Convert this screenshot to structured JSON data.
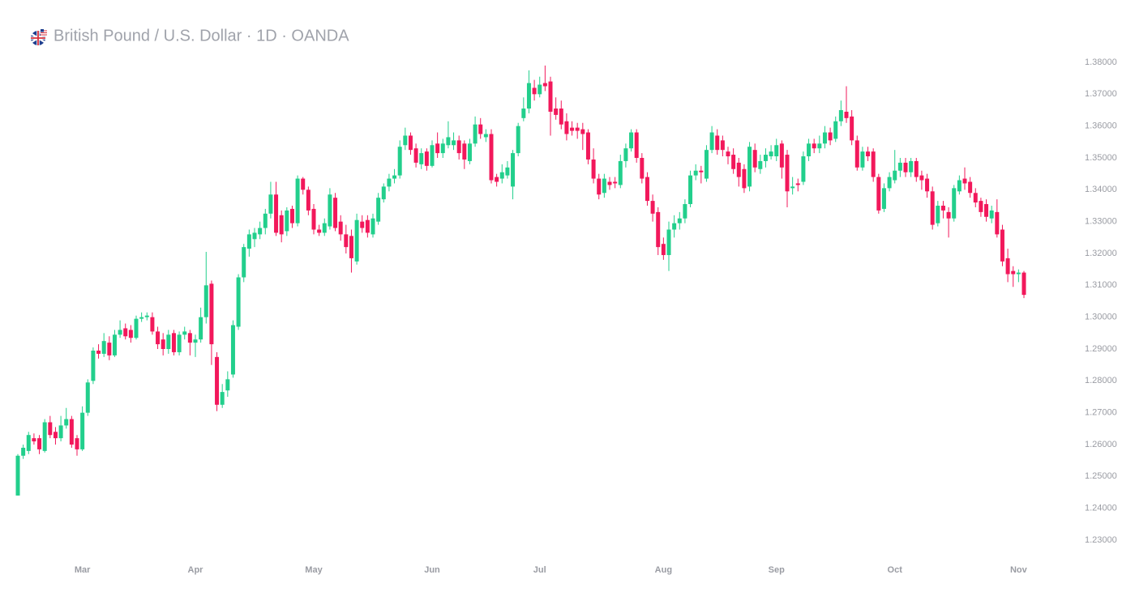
{
  "chart_data": {
    "type": "candlestick",
    "title": "British Pound / U.S. Dollar · 1D · OANDA",
    "up_color": "#22cf8c",
    "down_color": "#f2185b",
    "ylim": [
      1.23,
      1.38
    ],
    "yticks": [
      {
        "value": 1.23,
        "label": "1.23000"
      },
      {
        "value": 1.24,
        "label": "1.24000"
      },
      {
        "value": 1.25,
        "label": "1.25000"
      },
      {
        "value": 1.26,
        "label": "1.26000"
      },
      {
        "value": 1.27,
        "label": "1.27000"
      },
      {
        "value": 1.28,
        "label": "1.28000"
      },
      {
        "value": 1.29,
        "label": "1.29000"
      },
      {
        "value": 1.3,
        "label": "1.30000"
      },
      {
        "value": 1.31,
        "label": "1.31000"
      },
      {
        "value": 1.32,
        "label": "1.32000"
      },
      {
        "value": 1.33,
        "label": "1.33000"
      },
      {
        "value": 1.34,
        "label": "1.34000"
      },
      {
        "value": 1.35,
        "label": "1.35000"
      },
      {
        "value": 1.36,
        "label": "1.36000"
      },
      {
        "value": 1.37,
        "label": "1.37000"
      },
      {
        "value": 1.38,
        "label": "1.38000"
      }
    ],
    "categories": [
      null,
      null,
      null,
      null,
      null,
      null,
      null,
      null,
      null,
      null,
      null,
      null,
      "Mar",
      null,
      null,
      null,
      null,
      null,
      null,
      null,
      null,
      null,
      null,
      null,
      null,
      null,
      null,
      null,
      null,
      null,
      null,
      null,
      null,
      "Apr",
      null,
      null,
      null,
      null,
      null,
      null,
      null,
      null,
      null,
      null,
      null,
      null,
      null,
      null,
      null,
      null,
      null,
      null,
      null,
      null,
      null,
      "May",
      null,
      null,
      null,
      null,
      null,
      null,
      null,
      null,
      null,
      null,
      null,
      null,
      null,
      null,
      null,
      null,
      null,
      null,
      null,
      null,
      null,
      "Jun",
      null,
      null,
      null,
      null,
      null,
      null,
      null,
      null,
      null,
      null,
      null,
      null,
      null,
      null,
      null,
      null,
      null,
      null,
      null,
      "Jul",
      null,
      null,
      null,
      null,
      null,
      null,
      null,
      null,
      null,
      null,
      null,
      null,
      null,
      null,
      null,
      null,
      null,
      null,
      null,
      null,
      null,
      null,
      "Aug",
      null,
      null,
      null,
      null,
      null,
      null,
      null,
      null,
      null,
      null,
      null,
      null,
      null,
      null,
      null,
      null,
      null,
      null,
      null,
      null,
      "Sep",
      null,
      null,
      null,
      null,
      null,
      null,
      null,
      null,
      null,
      null,
      null,
      null,
      null,
      null,
      null,
      null,
      null,
      null,
      null,
      null,
      null,
      "Oct",
      null,
      null,
      null,
      null,
      null,
      null,
      null,
      null,
      null,
      null,
      null,
      null,
      null,
      null,
      null,
      null,
      null,
      null,
      null,
      null,
      null,
      null,
      "Nov",
      null
    ],
    "ohlc": [
      [
        1.244,
        1.257,
        1.244,
        1.2565
      ],
      [
        1.2565,
        1.26,
        1.2555,
        1.259
      ],
      [
        1.258,
        1.264,
        1.257,
        1.263
      ],
      [
        1.262,
        1.2635,
        1.26,
        1.261
      ],
      [
        1.262,
        1.263,
        1.257,
        1.2585
      ],
      [
        1.258,
        1.268,
        1.2575,
        1.267
      ],
      [
        1.267,
        1.269,
        1.262,
        1.263
      ],
      [
        1.264,
        1.2655,
        1.26,
        1.262
      ],
      [
        1.262,
        1.269,
        1.261,
        1.266
      ],
      [
        1.266,
        1.2715,
        1.265,
        1.268
      ],
      [
        1.268,
        1.269,
        1.259,
        1.26
      ],
      [
        1.262,
        1.263,
        1.2565,
        1.2585
      ],
      [
        1.2585,
        1.272,
        1.258,
        1.27
      ],
      [
        1.27,
        1.2805,
        1.269,
        1.2795
      ],
      [
        1.28,
        1.2905,
        1.279,
        1.2895
      ],
      [
        1.2895,
        1.2915,
        1.287,
        1.2885
      ],
      [
        1.2885,
        1.295,
        1.2875,
        1.2925
      ],
      [
        1.292,
        1.294,
        1.2865,
        1.288
      ],
      [
        1.288,
        1.296,
        1.2875,
        1.2945
      ],
      [
        1.2945,
        1.299,
        1.2935,
        1.296
      ],
      [
        1.2965,
        1.298,
        1.293,
        1.294
      ],
      [
        1.296,
        1.2975,
        1.292,
        1.2935
      ],
      [
        1.2935,
        1.3005,
        1.293,
        1.2995
      ],
      [
        1.2995,
        1.3015,
        1.2985,
        1.3
      ],
      [
        1.3,
        1.3015,
        1.299,
        1.3005
      ],
      [
        1.3,
        1.3015,
        1.2945,
        1.2955
      ],
      [
        1.2955,
        1.297,
        1.29,
        1.2915
      ],
      [
        1.293,
        1.295,
        1.288,
        1.29
      ],
      [
        1.29,
        1.296,
        1.2885,
        1.2945
      ],
      [
        1.295,
        1.296,
        1.288,
        1.289
      ],
      [
        1.289,
        1.2955,
        1.288,
        1.2945
      ],
      [
        1.2945,
        1.297,
        1.293,
        1.2955
      ],
      [
        1.295,
        1.296,
        1.288,
        1.292
      ],
      [
        1.292,
        1.2945,
        1.2875,
        1.293
      ],
      [
        1.293,
        1.303,
        1.292,
        1.3
      ],
      [
        1.3,
        1.3205,
        1.298,
        1.31
      ],
      [
        1.3105,
        1.3115,
        1.285,
        1.2915
      ],
      [
        1.2875,
        1.289,
        1.2705,
        1.2725
      ],
      [
        1.2725,
        1.279,
        1.2715,
        1.2765
      ],
      [
        1.277,
        1.283,
        1.275,
        1.2805
      ],
      [
        1.282,
        1.299,
        1.281,
        1.2975
      ],
      [
        1.297,
        1.3135,
        1.296,
        1.3125
      ],
      [
        1.3125,
        1.323,
        1.311,
        1.322
      ],
      [
        1.3215,
        1.3275,
        1.319,
        1.326
      ],
      [
        1.3245,
        1.328,
        1.322,
        1.3265
      ],
      [
        1.326,
        1.33,
        1.3245,
        1.328
      ],
      [
        1.328,
        1.334,
        1.326,
        1.3325
      ],
      [
        1.3325,
        1.3425,
        1.331,
        1.3385
      ],
      [
        1.3385,
        1.3425,
        1.3255,
        1.3265
      ],
      [
        1.332,
        1.3335,
        1.3235,
        1.326
      ],
      [
        1.327,
        1.3345,
        1.3255,
        1.3335
      ],
      [
        1.334,
        1.335,
        1.328,
        1.3295
      ],
      [
        1.3295,
        1.3445,
        1.3285,
        1.3435
      ],
      [
        1.3435,
        1.344,
        1.3385,
        1.34
      ],
      [
        1.34,
        1.341,
        1.332,
        1.3335
      ],
      [
        1.334,
        1.3355,
        1.326,
        1.3275
      ],
      [
        1.3275,
        1.329,
        1.3255,
        1.3265
      ],
      [
        1.3265,
        1.331,
        1.3255,
        1.3295
      ],
      [
        1.3285,
        1.3405,
        1.3275,
        1.3385
      ],
      [
        1.3375,
        1.339,
        1.327,
        1.328
      ],
      [
        1.33,
        1.332,
        1.324,
        1.326
      ],
      [
        1.326,
        1.329,
        1.32,
        1.322
      ],
      [
        1.3255,
        1.3275,
        1.314,
        1.3185
      ],
      [
        1.3175,
        1.3325,
        1.3165,
        1.3305
      ],
      [
        1.33,
        1.332,
        1.3265,
        1.328
      ],
      [
        1.3305,
        1.332,
        1.325,
        1.3265
      ],
      [
        1.326,
        1.3325,
        1.325,
        1.331
      ],
      [
        1.33,
        1.339,
        1.329,
        1.3375
      ],
      [
        1.337,
        1.342,
        1.336,
        1.341
      ],
      [
        1.341,
        1.345,
        1.3395,
        1.3435
      ],
      [
        1.3435,
        1.3465,
        1.342,
        1.3445
      ],
      [
        1.3445,
        1.3555,
        1.3435,
        1.3535
      ],
      [
        1.354,
        1.3595,
        1.3525,
        1.357
      ],
      [
        1.357,
        1.358,
        1.351,
        1.3525
      ],
      [
        1.353,
        1.3545,
        1.347,
        1.3485
      ],
      [
        1.348,
        1.353,
        1.3465,
        1.3515
      ],
      [
        1.352,
        1.353,
        1.346,
        1.3475
      ],
      [
        1.3475,
        1.3555,
        1.347,
        1.354
      ],
      [
        1.3545,
        1.358,
        1.35,
        1.3515
      ],
      [
        1.3515,
        1.356,
        1.35,
        1.3545
      ],
      [
        1.354,
        1.3615,
        1.353,
        1.3565
      ],
      [
        1.354,
        1.358,
        1.3525,
        1.3555
      ],
      [
        1.3555,
        1.357,
        1.3495,
        1.3515
      ],
      [
        1.3545,
        1.3555,
        1.3465,
        1.3495
      ],
      [
        1.349,
        1.356,
        1.348,
        1.3545
      ],
      [
        1.3545,
        1.363,
        1.3535,
        1.3605
      ],
      [
        1.3605,
        1.3625,
        1.356,
        1.3575
      ],
      [
        1.3565,
        1.359,
        1.355,
        1.3575
      ],
      [
        1.3575,
        1.359,
        1.342,
        1.343
      ],
      [
        1.344,
        1.345,
        1.341,
        1.3425
      ],
      [
        1.3435,
        1.348,
        1.342,
        1.3455
      ],
      [
        1.3445,
        1.349,
        1.3435,
        1.347
      ],
      [
        1.341,
        1.3525,
        1.337,
        1.3515
      ],
      [
        1.3515,
        1.361,
        1.3505,
        1.36
      ],
      [
        1.3625,
        1.369,
        1.3615,
        1.3655
      ],
      [
        1.3655,
        1.3775,
        1.364,
        1.3735
      ],
      [
        1.372,
        1.3745,
        1.368,
        1.37
      ],
      [
        1.37,
        1.3755,
        1.369,
        1.373
      ],
      [
        1.3735,
        1.379,
        1.371,
        1.3725
      ],
      [
        1.374,
        1.3755,
        1.357,
        1.3645
      ],
      [
        1.3655,
        1.369,
        1.362,
        1.3635
      ],
      [
        1.3655,
        1.368,
        1.359,
        1.3605
      ],
      [
        1.3615,
        1.364,
        1.3555,
        1.3575
      ],
      [
        1.3595,
        1.3615,
        1.357,
        1.3585
      ],
      [
        1.3595,
        1.361,
        1.356,
        1.3585
      ],
      [
        1.359,
        1.361,
        1.3525,
        1.3575
      ],
      [
        1.358,
        1.359,
        1.348,
        1.3495
      ],
      [
        1.3495,
        1.353,
        1.342,
        1.3435
      ],
      [
        1.3435,
        1.345,
        1.337,
        1.3385
      ],
      [
        1.339,
        1.345,
        1.3375,
        1.3435
      ],
      [
        1.3425,
        1.344,
        1.34,
        1.3415
      ],
      [
        1.3425,
        1.344,
        1.3405,
        1.342
      ],
      [
        1.3415,
        1.351,
        1.3405,
        1.349
      ],
      [
        1.349,
        1.3545,
        1.347,
        1.353
      ],
      [
        1.353,
        1.359,
        1.352,
        1.358
      ],
      [
        1.358,
        1.359,
        1.3485,
        1.35
      ],
      [
        1.35,
        1.3515,
        1.342,
        1.3435
      ],
      [
        1.344,
        1.3455,
        1.335,
        1.3365
      ],
      [
        1.3365,
        1.3385,
        1.33,
        1.3325
      ],
      [
        1.333,
        1.3345,
        1.3195,
        1.322
      ],
      [
        1.323,
        1.325,
        1.318,
        1.3195
      ],
      [
        1.3195,
        1.33,
        1.3145,
        1.3275
      ],
      [
        1.3275,
        1.332,
        1.325,
        1.3295
      ],
      [
        1.3295,
        1.333,
        1.3275,
        1.331
      ],
      [
        1.331,
        1.337,
        1.3295,
        1.3355
      ],
      [
        1.3355,
        1.346,
        1.3345,
        1.3445
      ],
      [
        1.3445,
        1.348,
        1.343,
        1.346
      ],
      [
        1.346,
        1.3475,
        1.342,
        1.3455
      ],
      [
        1.3435,
        1.354,
        1.3425,
        1.3525
      ],
      [
        1.3525,
        1.36,
        1.3515,
        1.358
      ],
      [
        1.357,
        1.359,
        1.351,
        1.3525
      ],
      [
        1.3555,
        1.357,
        1.3505,
        1.3525
      ],
      [
        1.352,
        1.3535,
        1.348,
        1.3505
      ],
      [
        1.351,
        1.353,
        1.345,
        1.3465
      ],
      [
        1.3485,
        1.35,
        1.341,
        1.344
      ],
      [
        1.3465,
        1.348,
        1.339,
        1.3405
      ],
      [
        1.341,
        1.355,
        1.3395,
        1.3535
      ],
      [
        1.3525,
        1.3545,
        1.3455,
        1.347
      ],
      [
        1.3465,
        1.351,
        1.345,
        1.349
      ],
      [
        1.349,
        1.353,
        1.347,
        1.351
      ],
      [
        1.3505,
        1.354,
        1.3495,
        1.352
      ],
      [
        1.3505,
        1.356,
        1.349,
        1.354
      ],
      [
        1.3545,
        1.3555,
        1.3435,
        1.347
      ],
      [
        1.351,
        1.3525,
        1.3345,
        1.3395
      ],
      [
        1.3405,
        1.344,
        1.3385,
        1.341
      ],
      [
        1.342,
        1.3435,
        1.3395,
        1.3415
      ],
      [
        1.3425,
        1.352,
        1.3415,
        1.3505
      ],
      [
        1.3505,
        1.356,
        1.349,
        1.3545
      ],
      [
        1.3545,
        1.356,
        1.3515,
        1.353
      ],
      [
        1.353,
        1.357,
        1.3515,
        1.3545
      ],
      [
        1.3545,
        1.36,
        1.353,
        1.358
      ],
      [
        1.358,
        1.3595,
        1.354,
        1.3555
      ],
      [
        1.356,
        1.363,
        1.355,
        1.3615
      ],
      [
        1.3615,
        1.368,
        1.36,
        1.365
      ],
      [
        1.3645,
        1.3725,
        1.361,
        1.3625
      ],
      [
        1.363,
        1.365,
        1.354,
        1.3555
      ],
      [
        1.3555,
        1.357,
        1.346,
        1.347
      ],
      [
        1.347,
        1.3535,
        1.346,
        1.352
      ],
      [
        1.352,
        1.3535,
        1.349,
        1.3505
      ],
      [
        1.352,
        1.353,
        1.3425,
        1.344
      ],
      [
        1.344,
        1.345,
        1.3325,
        1.3335
      ],
      [
        1.334,
        1.342,
        1.333,
        1.3405
      ],
      [
        1.3405,
        1.3455,
        1.3395,
        1.344
      ],
      [
        1.343,
        1.3525,
        1.342,
        1.346
      ],
      [
        1.346,
        1.35,
        1.344,
        1.3485
      ],
      [
        1.3485,
        1.35,
        1.344,
        1.3455
      ],
      [
        1.3455,
        1.35,
        1.344,
        1.349
      ],
      [
        1.349,
        1.35,
        1.3425,
        1.344
      ],
      [
        1.3445,
        1.346,
        1.34,
        1.343
      ],
      [
        1.3435,
        1.345,
        1.3375,
        1.3395
      ],
      [
        1.3395,
        1.341,
        1.3275,
        1.329
      ],
      [
        1.3295,
        1.3365,
        1.3285,
        1.335
      ],
      [
        1.335,
        1.3365,
        1.331,
        1.3335
      ],
      [
        1.333,
        1.3345,
        1.325,
        1.331
      ],
      [
        1.331,
        1.3415,
        1.33,
        1.3405
      ],
      [
        1.3395,
        1.3445,
        1.3385,
        1.343
      ],
      [
        1.3435,
        1.347,
        1.34,
        1.342
      ],
      [
        1.3425,
        1.344,
        1.3375,
        1.339
      ],
      [
        1.339,
        1.3405,
        1.3345,
        1.336
      ],
      [
        1.3365,
        1.3375,
        1.3315,
        1.333
      ],
      [
        1.3355,
        1.337,
        1.33,
        1.3315
      ],
      [
        1.331,
        1.335,
        1.3295,
        1.3335
      ],
      [
        1.333,
        1.337,
        1.325,
        1.326
      ],
      [
        1.3275,
        1.329,
        1.316,
        1.3175
      ],
      [
        1.3185,
        1.3215,
        1.311,
        1.3135
      ],
      [
        1.3145,
        1.316,
        1.3095,
        1.3135
      ],
      [
        1.3135,
        1.315,
        1.311,
        1.314
      ],
      [
        1.314,
        1.3145,
        1.306,
        1.307
      ]
    ]
  }
}
